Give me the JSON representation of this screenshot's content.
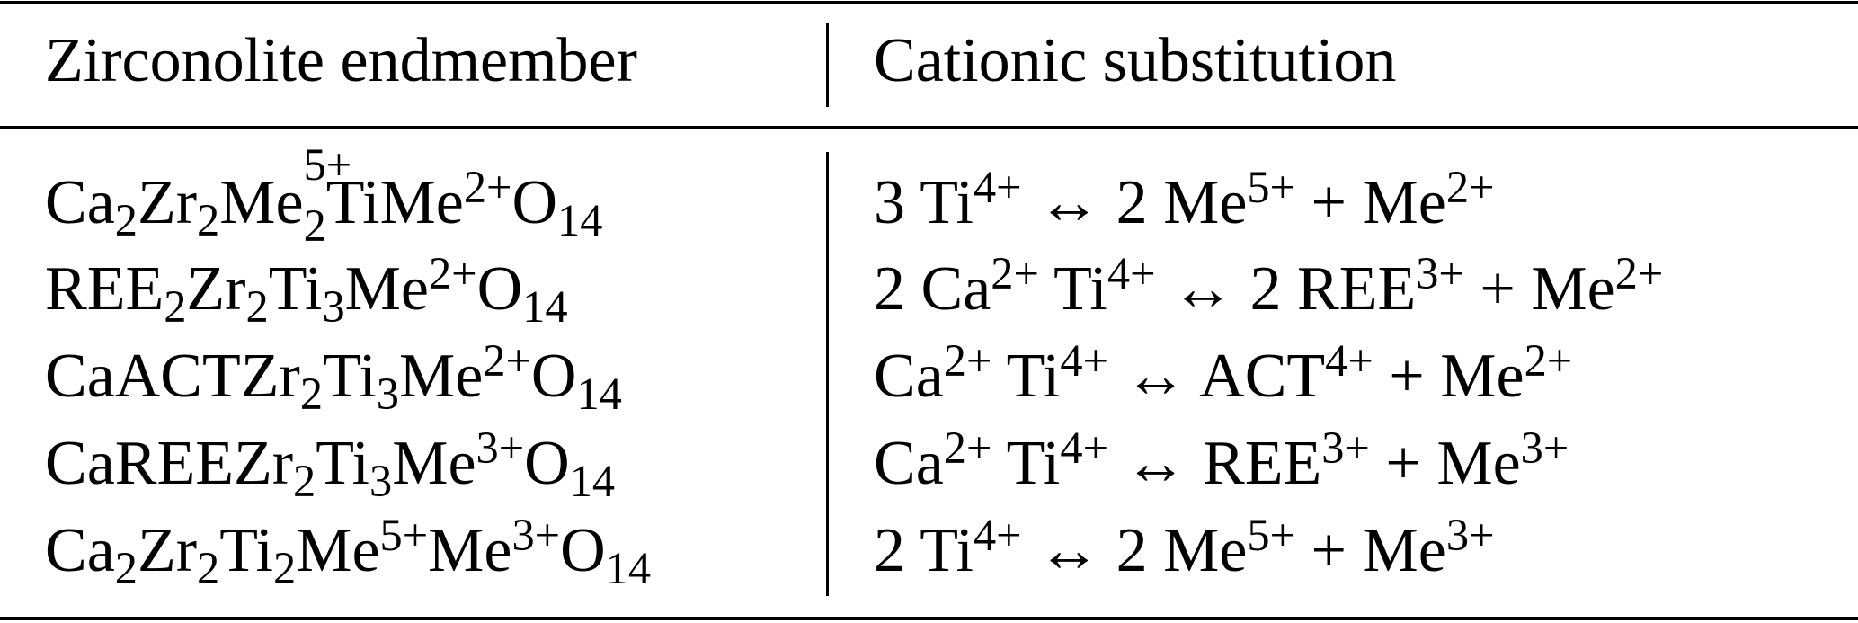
{
  "table": {
    "headers": [
      "Zirconolite endmember",
      "Cationic substitution"
    ],
    "rows": [
      {
        "endmember": [
          {
            "t": "Ca"
          },
          {
            "sub": "2"
          },
          {
            "t": "Zr"
          },
          {
            "sub": "2"
          },
          {
            "t": "Me"
          },
          {
            "subsup": [
              "2",
              "5+"
            ]
          },
          {
            "t": "TiMe"
          },
          {
            "sup": "2+"
          },
          {
            "t": "O"
          },
          {
            "sub": "14"
          }
        ],
        "substitution": [
          {
            "t": "3 Ti"
          },
          {
            "sup": "4+"
          },
          {
            "t": " ↔ 2 Me"
          },
          {
            "sup": "5+"
          },
          {
            "t": " + Me"
          },
          {
            "sup": "2+"
          }
        ]
      },
      {
        "endmember": [
          {
            "t": "REE"
          },
          {
            "sub": "2"
          },
          {
            "t": "Zr"
          },
          {
            "sub": "2"
          },
          {
            "t": "Ti"
          },
          {
            "sub": "3"
          },
          {
            "t": "Me"
          },
          {
            "sup": "2+"
          },
          {
            "t": "O"
          },
          {
            "sub": "14"
          }
        ],
        "substitution": [
          {
            "t": "2 Ca"
          },
          {
            "sup": "2+"
          },
          {
            "t": " Ti"
          },
          {
            "sup": "4+"
          },
          {
            "t": " ↔ 2 REE"
          },
          {
            "sup": "3+"
          },
          {
            "t": " + Me"
          },
          {
            "sup": "2+"
          }
        ]
      },
      {
        "endmember": [
          {
            "t": "CaACTZr"
          },
          {
            "sub": "2"
          },
          {
            "t": "Ti"
          },
          {
            "sub": "3"
          },
          {
            "t": "Me"
          },
          {
            "sup": "2+"
          },
          {
            "t": "O"
          },
          {
            "sub": "14"
          }
        ],
        "substitution": [
          {
            "t": "Ca"
          },
          {
            "sup": "2+"
          },
          {
            "t": " Ti"
          },
          {
            "sup": "4+"
          },
          {
            "t": " ↔ ACT"
          },
          {
            "sup": "4+"
          },
          {
            "t": " + Me"
          },
          {
            "sup": "2+"
          }
        ]
      },
      {
        "endmember": [
          {
            "t": "CaREEZr"
          },
          {
            "sub": "2"
          },
          {
            "t": "Ti"
          },
          {
            "sub": "3"
          },
          {
            "t": "Me"
          },
          {
            "sup": "3+"
          },
          {
            "t": "O"
          },
          {
            "sub": "14"
          }
        ],
        "substitution": [
          {
            "t": "Ca"
          },
          {
            "sup": "2+"
          },
          {
            "t": " Ti"
          },
          {
            "sup": "4+"
          },
          {
            "t": " ↔ REE"
          },
          {
            "sup": "3+"
          },
          {
            "t": " + Me"
          },
          {
            "sup": "3+"
          }
        ]
      },
      {
        "endmember": [
          {
            "t": "Ca"
          },
          {
            "sub": "2"
          },
          {
            "t": "Zr"
          },
          {
            "sub": "2"
          },
          {
            "t": "Ti"
          },
          {
            "sub": "2"
          },
          {
            "t": "Me"
          },
          {
            "sup": "5+"
          },
          {
            "t": "Me"
          },
          {
            "sup": "3+"
          },
          {
            "t": "O"
          },
          {
            "sub": "14"
          }
        ],
        "substitution": [
          {
            "t": "2 Ti"
          },
          {
            "sup": "4+"
          },
          {
            "t": " ↔ 2 Me"
          },
          {
            "sup": "5+"
          },
          {
            "t": " + Me"
          },
          {
            "sup": "3+"
          }
        ]
      }
    ]
  }
}
